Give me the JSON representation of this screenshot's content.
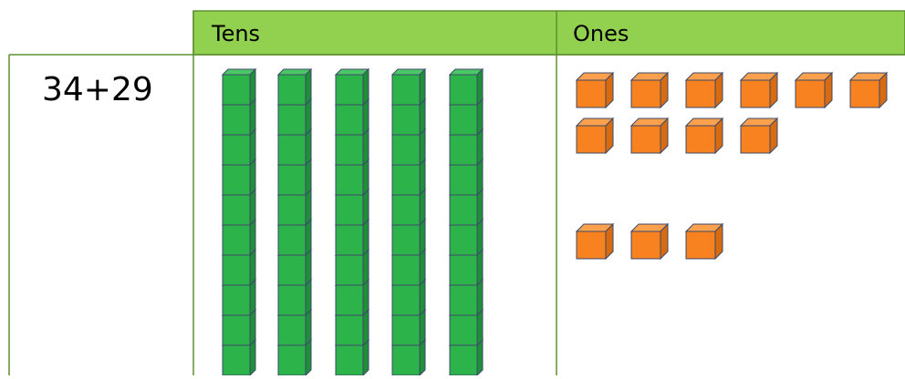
{
  "table": {
    "headers": [
      "Tens",
      "Ones"
    ],
    "rows": [
      [
        "34+29"
      ]
    ]
  }
}
